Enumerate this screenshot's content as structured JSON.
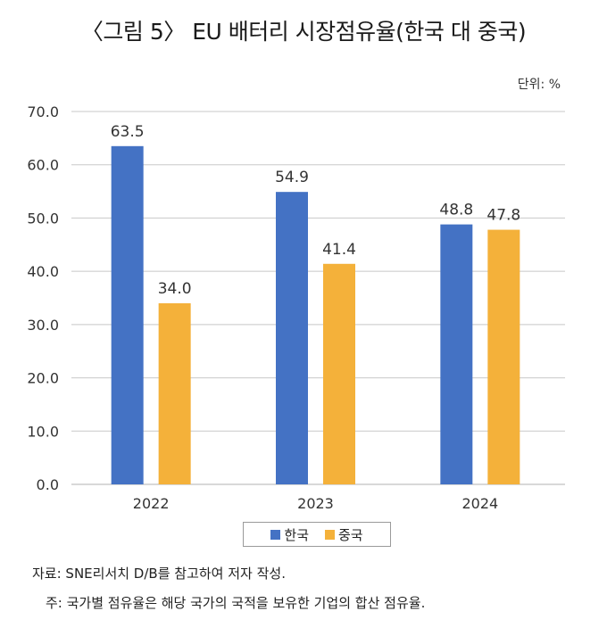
{
  "title": "〈그림 5〉 EU 배터리 시장점유율(한국 대 중국)",
  "unit_label": "단위: %",
  "chart_data": {
    "type": "bar",
    "title": "〈그림 5〉 EU 배터리 시장점유율(한국 대 중국)",
    "categories": [
      "2022",
      "2023",
      "2024"
    ],
    "series": [
      {
        "name": "한국",
        "values": [
          63.5,
          54.9,
          48.8
        ],
        "color": "#4472c4"
      },
      {
        "name": "중국",
        "values": [
          34.0,
          41.4,
          47.8
        ],
        "color": "#f4b13a"
      }
    ],
    "value_labels": [
      [
        "63.5",
        "54.9",
        "48.8"
      ],
      [
        "34.0",
        "41.4",
        "47.8"
      ]
    ],
    "ylim": [
      0,
      70
    ],
    "yticks": [
      0,
      10,
      20,
      30,
      40,
      50,
      60,
      70
    ],
    "ytick_labels": [
      "0.0",
      "10.0",
      "20.0",
      "30.0",
      "40.0",
      "50.0",
      "60.0",
      "70.0"
    ],
    "grid": true,
    "legend_position": "bottom-center",
    "xlabel": "",
    "ylabel": ""
  },
  "notes": {
    "source": "자료: SNE리서치 D/B를 참고하여 저자 작성.",
    "footnote": "주: 국가별 점유율은 해당 국가의 국적을 보유한 기업의 합산 점유율."
  }
}
